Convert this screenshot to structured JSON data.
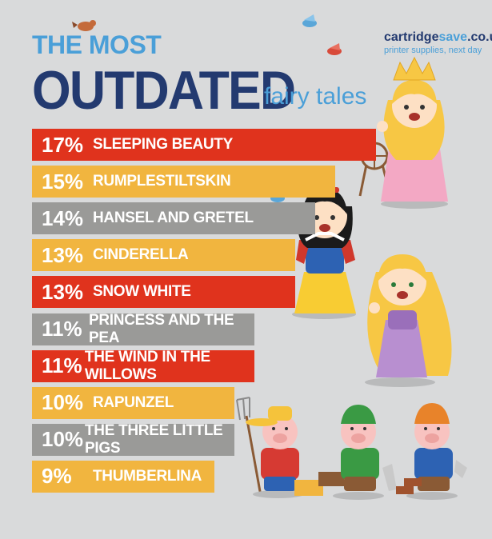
{
  "header": {
    "line1": "THE MOST",
    "line2": "OUTDATED",
    "line3": "fairy tales"
  },
  "brand": {
    "name_part1": "cartridge",
    "name_part2": "save",
    "name_part3": ".co.uk",
    "tagline": "printer supplies, next day"
  },
  "colors": {
    "red": "#e0331d",
    "yellow": "#f1b53f",
    "grey": "#9a9a98",
    "title_dark": "#233a70",
    "title_light": "#4a9fd8",
    "background": "#d9dadb"
  },
  "chart_data": {
    "type": "bar",
    "orientation": "horizontal",
    "categories": [
      "SLEEPING BEAUTY",
      "RUMPLESTILTSKIN",
      "HANSEL AND GRETEL",
      "CINDERELLA",
      "SNOW WHITE",
      "PRINCESS AND THE PEA",
      "THE WIND IN THE WILLOWS",
      "RAPUNZEL",
      "THE THREE LITTLE PIGS",
      "THUMBERLINA"
    ],
    "values": [
      17,
      15,
      14,
      13,
      13,
      11,
      11,
      10,
      10,
      9
    ],
    "value_labels": [
      "17%",
      "15%",
      "14%",
      "13%",
      "13%",
      "11%",
      "11%",
      "10%",
      "10%",
      "9%"
    ],
    "bar_colors": [
      "#e0331d",
      "#f1b53f",
      "#9a9a98",
      "#f1b53f",
      "#e0331d",
      "#9a9a98",
      "#e0331d",
      "#f1b53f",
      "#9a9a98",
      "#f1b53f"
    ],
    "title": "THE MOST OUTDATED fairy tales",
    "unit": "%"
  }
}
